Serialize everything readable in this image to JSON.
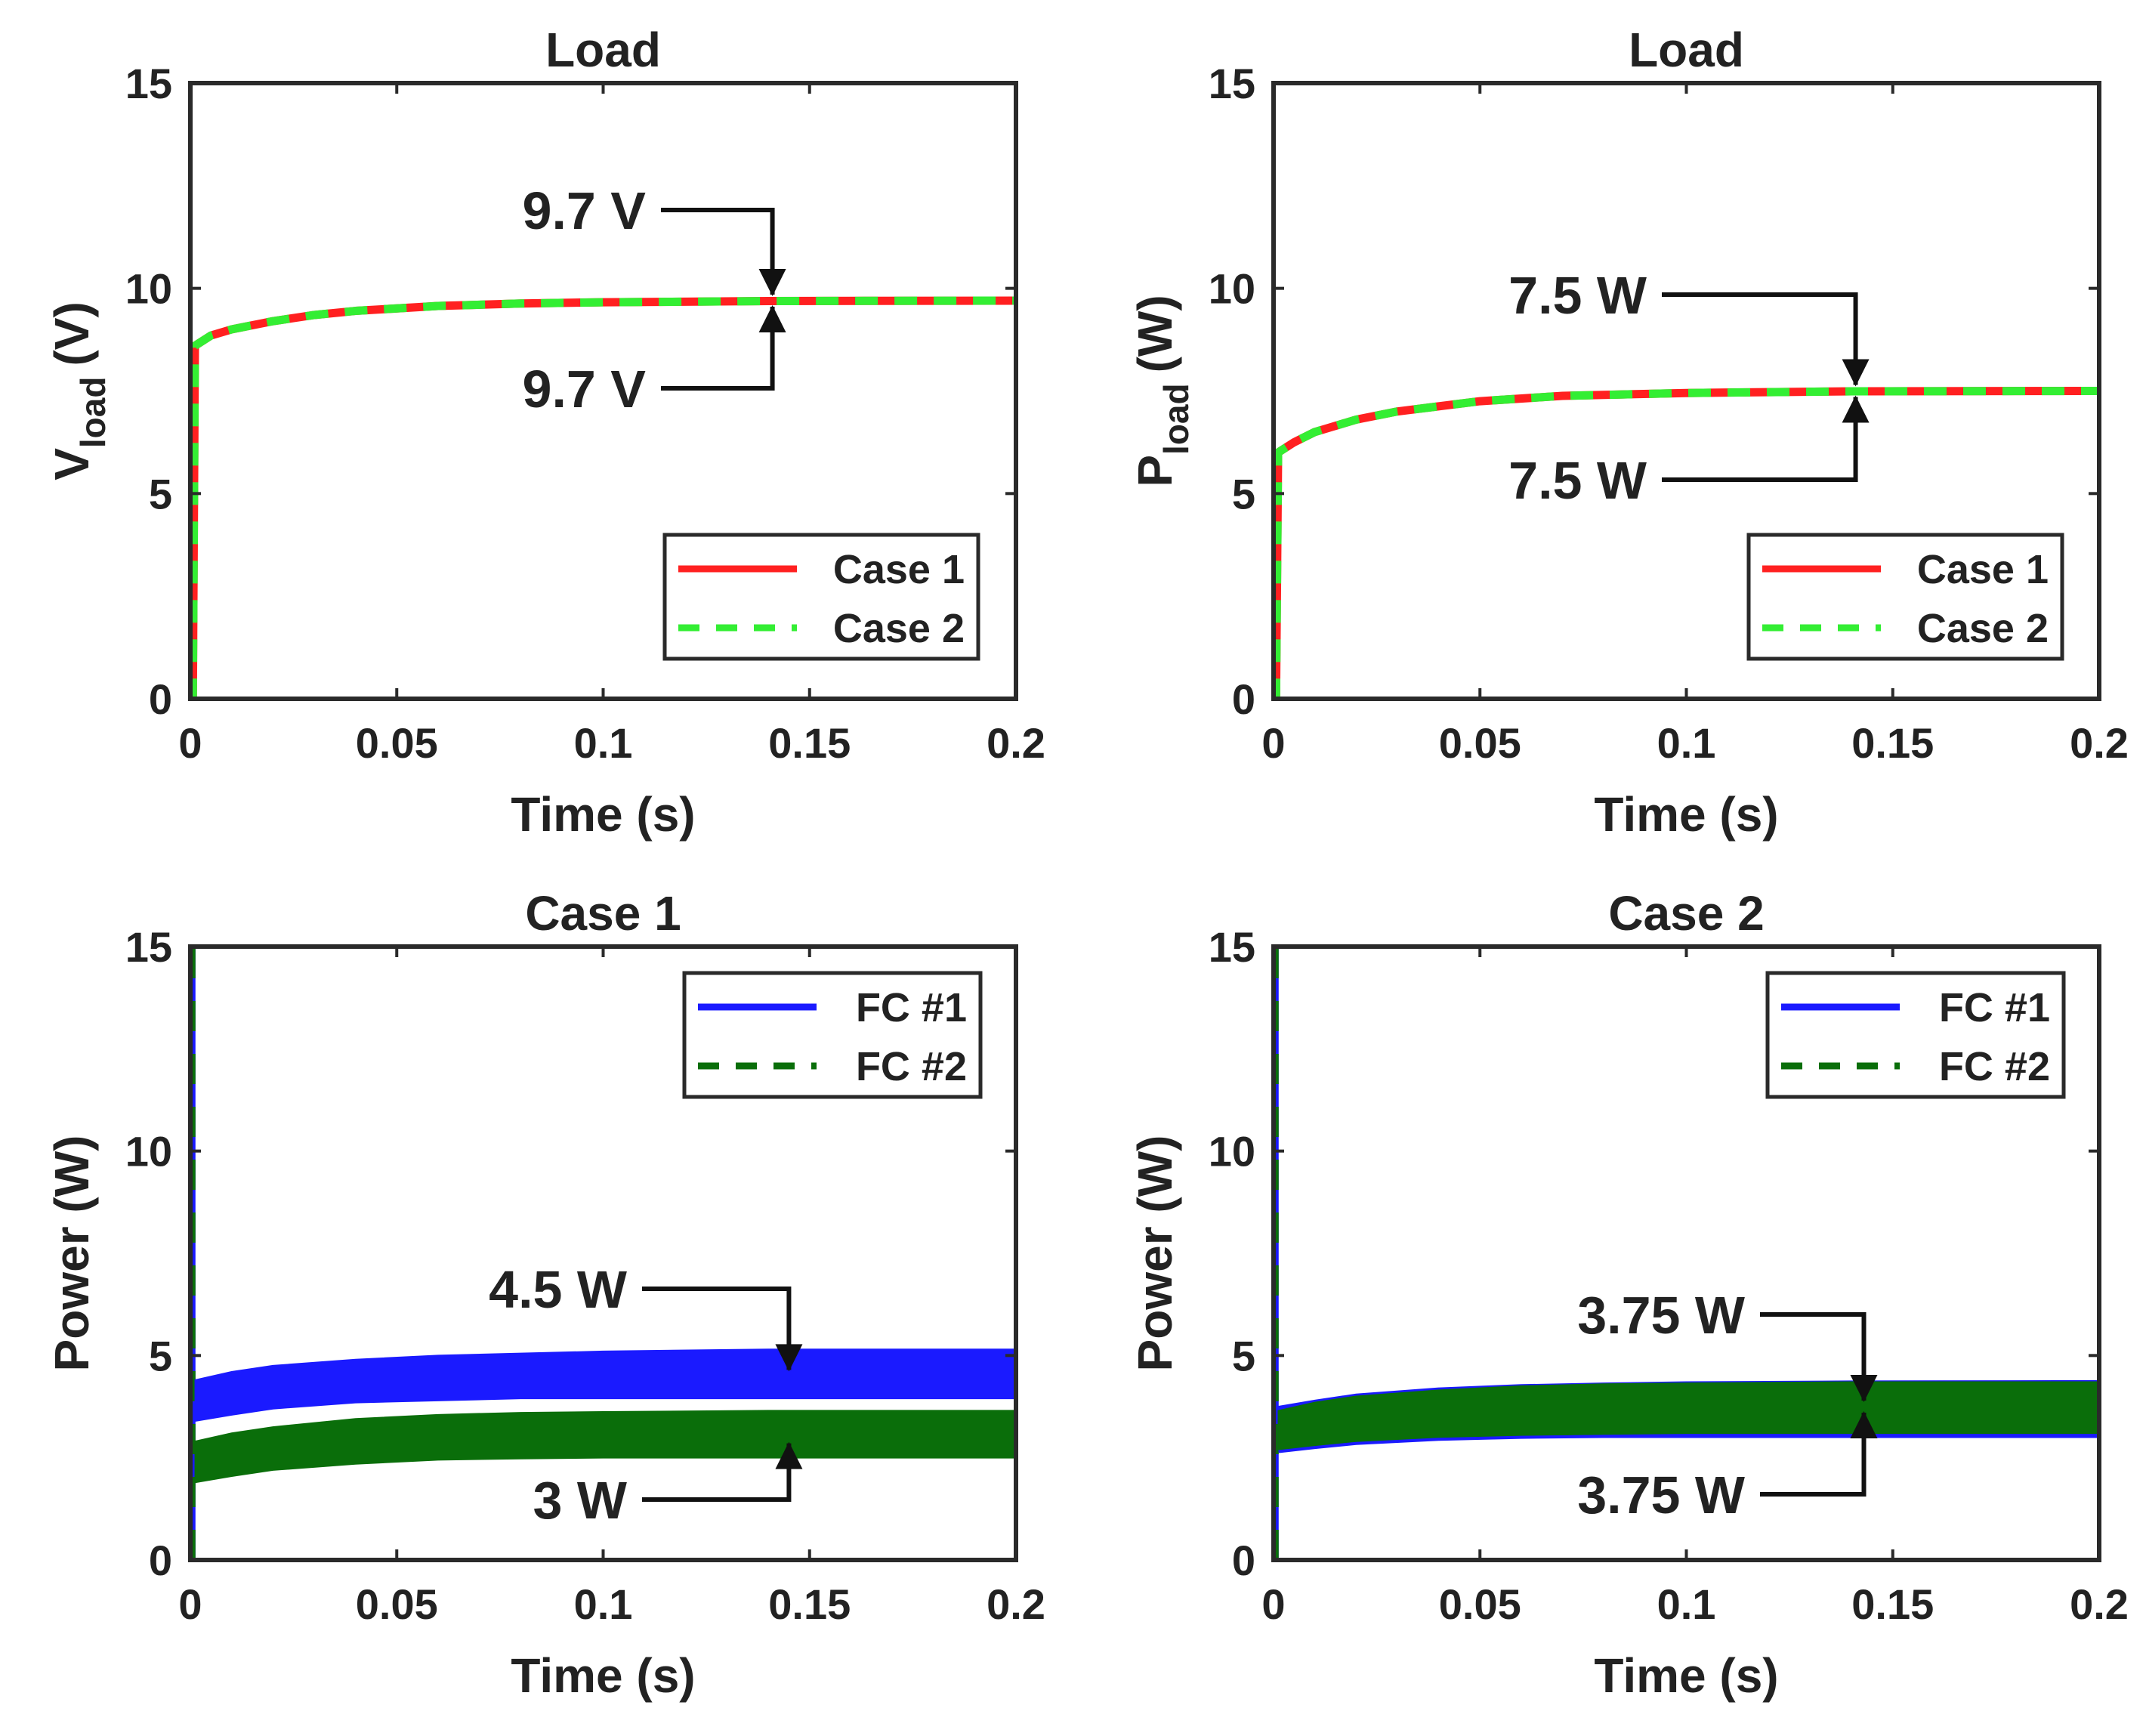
{
  "chart_data": [
    {
      "type": "line",
      "title": "Load",
      "xlabel": "Time (s)",
      "ylabel": "V",
      "ylabel_sub": "load",
      "ylabel_unit": "(V)",
      "xlim": [
        0,
        0.2
      ],
      "ylim": [
        0,
        15
      ],
      "xticks": [
        0,
        0.05,
        0.1,
        0.15,
        0.2
      ],
      "xtick_labels": [
        "0",
        "0.05",
        "0.1",
        "0.15",
        "0.2"
      ],
      "yticks": [
        0,
        5,
        10,
        15
      ],
      "ytick_labels": [
        "0",
        "5",
        "10",
        "15"
      ],
      "legend_position": "bottom-right",
      "series": [
        {
          "name": "Case 1",
          "style": "solid",
          "color": "#ff2020",
          "x": [
            0,
            0.0006,
            0.0011,
            0.005,
            0.01,
            0.02,
            0.03,
            0.04,
            0.06,
            0.08,
            0.1,
            0.14,
            0.2
          ],
          "y": [
            0,
            0,
            8.6,
            8.85,
            9.0,
            9.2,
            9.35,
            9.45,
            9.57,
            9.63,
            9.66,
            9.69,
            9.7
          ]
        },
        {
          "name": "Case 2",
          "style": "dashed",
          "color": "#33ee33",
          "x": [
            0,
            0.0006,
            0.0011,
            0.005,
            0.01,
            0.02,
            0.03,
            0.04,
            0.06,
            0.08,
            0.1,
            0.14,
            0.2
          ],
          "y": [
            0,
            0,
            8.6,
            8.85,
            9.0,
            9.2,
            9.35,
            9.45,
            9.57,
            9.63,
            9.66,
            9.69,
            9.7
          ]
        }
      ],
      "annotations": [
        {
          "text": "9.7 V",
          "side": "top",
          "x": 0.141,
          "y": 9.7
        },
        {
          "text": "9.7 V",
          "side": "bottom",
          "x": 0.141,
          "y": 9.7
        }
      ]
    },
    {
      "type": "line",
      "title": "Load",
      "xlabel": "Time (s)",
      "ylabel": "P",
      "ylabel_sub": "load",
      "ylabel_unit": "(W)",
      "xlim": [
        0,
        0.2
      ],
      "ylim": [
        0,
        15
      ],
      "xticks": [
        0,
        0.05,
        0.1,
        0.15,
        0.2
      ],
      "xtick_labels": [
        "0",
        "0.05",
        "0.1",
        "0.15",
        "0.2"
      ],
      "yticks": [
        0,
        5,
        10,
        15
      ],
      "ytick_labels": [
        "0",
        "5",
        "10",
        "15"
      ],
      "legend_position": "bottom-right",
      "series": [
        {
          "name": "Case 1",
          "style": "solid",
          "color": "#ff2020",
          "x": [
            0,
            0.0006,
            0.0011,
            0.005,
            0.01,
            0.02,
            0.03,
            0.05,
            0.07,
            0.1,
            0.14,
            0.2
          ],
          "y": [
            0,
            0,
            6.0,
            6.25,
            6.5,
            6.8,
            7.0,
            7.25,
            7.38,
            7.45,
            7.49,
            7.5
          ]
        },
        {
          "name": "Case 2",
          "style": "dashed",
          "color": "#33ee33",
          "x": [
            0,
            0.0006,
            0.0011,
            0.005,
            0.01,
            0.02,
            0.03,
            0.05,
            0.07,
            0.1,
            0.14,
            0.2
          ],
          "y": [
            0,
            0,
            6.0,
            6.25,
            6.5,
            6.8,
            7.0,
            7.25,
            7.38,
            7.45,
            7.49,
            7.5
          ]
        }
      ],
      "annotations": [
        {
          "text": "7.5 W",
          "side": "top",
          "x": 0.141,
          "y": 7.5
        },
        {
          "text": "7.5 W",
          "side": "bottom",
          "x": 0.141,
          "y": 7.5
        }
      ]
    },
    {
      "type": "area",
      "title": "Case 1",
      "xlabel": "Time (s)",
      "ylabel": "Power (W)",
      "xlim": [
        0,
        0.2
      ],
      "ylim": [
        0,
        15
      ],
      "xticks": [
        0,
        0.05,
        0.1,
        0.15,
        0.2
      ],
      "xtick_labels": [
        "0",
        "0.05",
        "0.1",
        "0.15",
        "0.2"
      ],
      "yticks": [
        0,
        5,
        10,
        15
      ],
      "ytick_labels": [
        "0",
        "5",
        "10",
        "15"
      ],
      "legend_position": "top-right",
      "series": [
        {
          "name": "FC #1",
          "style": "solid",
          "color": "#1a1aff",
          "x": [
            0.0012,
            0.01,
            0.02,
            0.04,
            0.06,
            0.08,
            0.1,
            0.14,
            0.2
          ],
          "y_upper": [
            4.4,
            4.6,
            4.75,
            4.9,
            5.0,
            5.05,
            5.1,
            5.15,
            5.15
          ],
          "y_lower": [
            3.4,
            3.55,
            3.7,
            3.85,
            3.9,
            3.95,
            3.95,
            3.95,
            3.95
          ]
        },
        {
          "name": "FC #2",
          "style": "dashed",
          "color": "#0a6e0a",
          "x": [
            0.0012,
            0.01,
            0.02,
            0.04,
            0.06,
            0.08,
            0.1,
            0.14,
            0.2
          ],
          "y_upper": [
            2.9,
            3.1,
            3.25,
            3.45,
            3.55,
            3.6,
            3.62,
            3.65,
            3.65
          ],
          "y_lower": [
            1.9,
            2.05,
            2.2,
            2.35,
            2.45,
            2.48,
            2.5,
            2.5,
            2.5
          ]
        }
      ],
      "annotations": [
        {
          "text": "4.5 W",
          "side": "top",
          "x": 0.145,
          "y": 4.5
        },
        {
          "text": "3 W",
          "side": "bottom",
          "x": 0.145,
          "y": 3.0
        }
      ]
    },
    {
      "type": "area",
      "title": "Case 2",
      "xlabel": "Time (s)",
      "ylabel": "Power (W)",
      "xlim": [
        0,
        0.2
      ],
      "ylim": [
        0,
        15
      ],
      "xticks": [
        0,
        0.05,
        0.1,
        0.15,
        0.2
      ],
      "xtick_labels": [
        "0",
        "0.05",
        "0.1",
        "0.15",
        "0.2"
      ],
      "yticks": [
        0,
        5,
        10,
        15
      ],
      "ytick_labels": [
        "0",
        "5",
        "10",
        "15"
      ],
      "legend_position": "top-right",
      "series": [
        {
          "name": "FC #1",
          "style": "solid",
          "color": "#1a1aff",
          "x": [
            0.0012,
            0.01,
            0.02,
            0.04,
            0.06,
            0.08,
            0.1,
            0.14,
            0.2
          ],
          "y_upper": [
            3.75,
            3.9,
            4.05,
            4.2,
            4.28,
            4.32,
            4.35,
            4.37,
            4.38
          ],
          "y_lower": [
            2.65,
            2.75,
            2.85,
            2.95,
            3.0,
            3.02,
            3.02,
            3.02,
            3.02
          ]
        },
        {
          "name": "FC #2",
          "style": "dashed",
          "color": "#0a6e0a",
          "x": [
            0.0012,
            0.01,
            0.02,
            0.04,
            0.06,
            0.08,
            0.1,
            0.14,
            0.2
          ],
          "y_upper": [
            3.65,
            3.85,
            4.0,
            4.15,
            4.25,
            4.3,
            4.32,
            4.35,
            4.35
          ],
          "y_lower": [
            2.65,
            2.8,
            2.9,
            3.0,
            3.05,
            3.08,
            3.1,
            3.1,
            3.1
          ]
        }
      ],
      "annotations": [
        {
          "text": "3.75 W",
          "side": "top",
          "x": 0.143,
          "y": 3.75
        },
        {
          "text": "3.75 W",
          "side": "bottom",
          "x": 0.143,
          "y": 3.75
        }
      ]
    }
  ]
}
